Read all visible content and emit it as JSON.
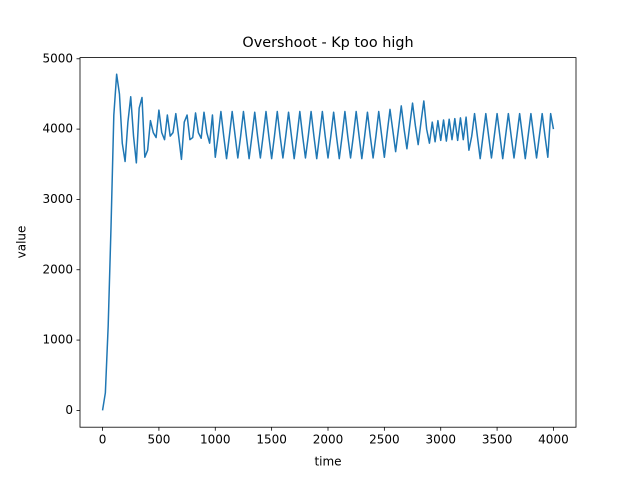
{
  "chart_data": {
    "type": "line",
    "title": "Overshoot - Kp too high",
    "x_label": "time",
    "y_label": "value",
    "x": [
      0,
      25,
      50,
      75,
      100,
      125,
      150,
      175,
      200,
      225,
      250,
      275,
      300,
      325,
      350,
      375,
      400,
      425,
      450,
      475,
      500,
      525,
      550,
      575,
      600,
      625,
      650,
      675,
      700,
      725,
      750,
      775,
      800,
      825,
      850,
      875,
      900,
      925,
      950,
      975,
      1000,
      1025,
      1050,
      1075,
      1100,
      1125,
      1150,
      1175,
      1200,
      1225,
      1250,
      1275,
      1300,
      1325,
      1350,
      1375,
      1400,
      1425,
      1450,
      1475,
      1500,
      1525,
      1550,
      1575,
      1600,
      1625,
      1650,
      1675,
      1700,
      1725,
      1750,
      1775,
      1800,
      1825,
      1850,
      1875,
      1900,
      1925,
      1950,
      1975,
      2000,
      2025,
      2050,
      2075,
      2100,
      2125,
      2150,
      2175,
      2200,
      2225,
      2250,
      2275,
      2300,
      2325,
      2350,
      2375,
      2400,
      2425,
      2450,
      2475,
      2500,
      2525,
      2550,
      2575,
      2600,
      2625,
      2650,
      2675,
      2700,
      2725,
      2750,
      2775,
      2800,
      2825,
      2850,
      2875,
      2900,
      2925,
      2950,
      2975,
      3000,
      3025,
      3050,
      3075,
      3100,
      3125,
      3150,
      3175,
      3200,
      3225,
      3250,
      3275,
      3300,
      3325,
      3350,
      3375,
      3400,
      3425,
      3450,
      3475,
      3500,
      3525,
      3550,
      3575,
      3600,
      3625,
      3650,
      3675,
      3700,
      3725,
      3750,
      3775,
      3800,
      3825,
      3850,
      3875,
      3900,
      3925,
      3950,
      3975,
      4000
    ],
    "series": [
      {
        "name": "value",
        "color": "#1f77b4",
        "values": [
          0,
          250,
          1200,
          2600,
          4200,
          4780,
          4500,
          3800,
          3540,
          4100,
          4460,
          3900,
          3520,
          4300,
          4450,
          3600,
          3700,
          4120,
          3950,
          3880,
          4270,
          3950,
          3850,
          4200,
          3900,
          3950,
          4220,
          3900,
          3570,
          4100,
          4200,
          3850,
          3880,
          4230,
          3950,
          3870,
          4240,
          3950,
          3800,
          4200,
          3600,
          3900,
          4250,
          3900,
          3580,
          3900,
          4250,
          3920,
          3590,
          3900,
          4250,
          3910,
          3580,
          3900,
          4240,
          3900,
          3590,
          3910,
          4250,
          3900,
          3580,
          3900,
          4250,
          3900,
          3590,
          3900,
          4240,
          3910,
          3580,
          3900,
          4250,
          3900,
          3590,
          3900,
          4250,
          3900,
          3580,
          3910,
          4250,
          3900,
          3590,
          3900,
          4240,
          3900,
          3580,
          3900,
          4250,
          3900,
          3590,
          3900,
          4250,
          3910,
          3580,
          3900,
          4240,
          3900,
          3590,
          3900,
          4250,
          3920,
          3600,
          3950,
          4280,
          3980,
          3680,
          4000,
          4330,
          4000,
          3720,
          4050,
          4370,
          4050,
          3780,
          4100,
          4400,
          4000,
          3800,
          4100,
          3820,
          4120,
          3840,
          4130,
          3830,
          4140,
          3850,
          4150,
          3840,
          4160,
          3850,
          4170,
          3700,
          3900,
          4220,
          3900,
          3580,
          3900,
          4220,
          3900,
          3590,
          3900,
          4220,
          3900,
          3580,
          3900,
          4220,
          3900,
          3590,
          3900,
          4220,
          3900,
          3580,
          3900,
          4220,
          3900,
          3590,
          3900,
          4220,
          3900,
          3600,
          4220,
          4000
        ]
      }
    ],
    "xlim": [
      -200,
      4200
    ],
    "ylim": [
      -239,
      5017
    ],
    "xticks": [
      0,
      500,
      1000,
      1500,
      2000,
      2500,
      3000,
      3500,
      4000
    ],
    "yticks": [
      0,
      1000,
      2000,
      3000,
      4000,
      5000
    ],
    "grid": false
  }
}
